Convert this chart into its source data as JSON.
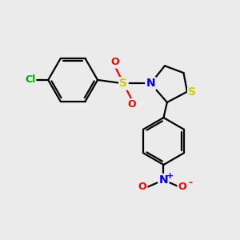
{
  "background_color": "#ebebeb",
  "bond_color": "#000000",
  "bond_width": 1.6,
  "atom_colors": {
    "S_sulfonyl": "#cccc00",
    "S_thiazolidine": "#cccc00",
    "N": "#0000ff",
    "O_red": "#ff0000",
    "Cl": "#00aa00",
    "NO2_N": "#0000ff",
    "NO2_O": "#ff0000"
  },
  "figsize": [
    3.0,
    3.0
  ],
  "dpi": 100,
  "xlim": [
    0,
    10
  ],
  "ylim": [
    0,
    10
  ]
}
